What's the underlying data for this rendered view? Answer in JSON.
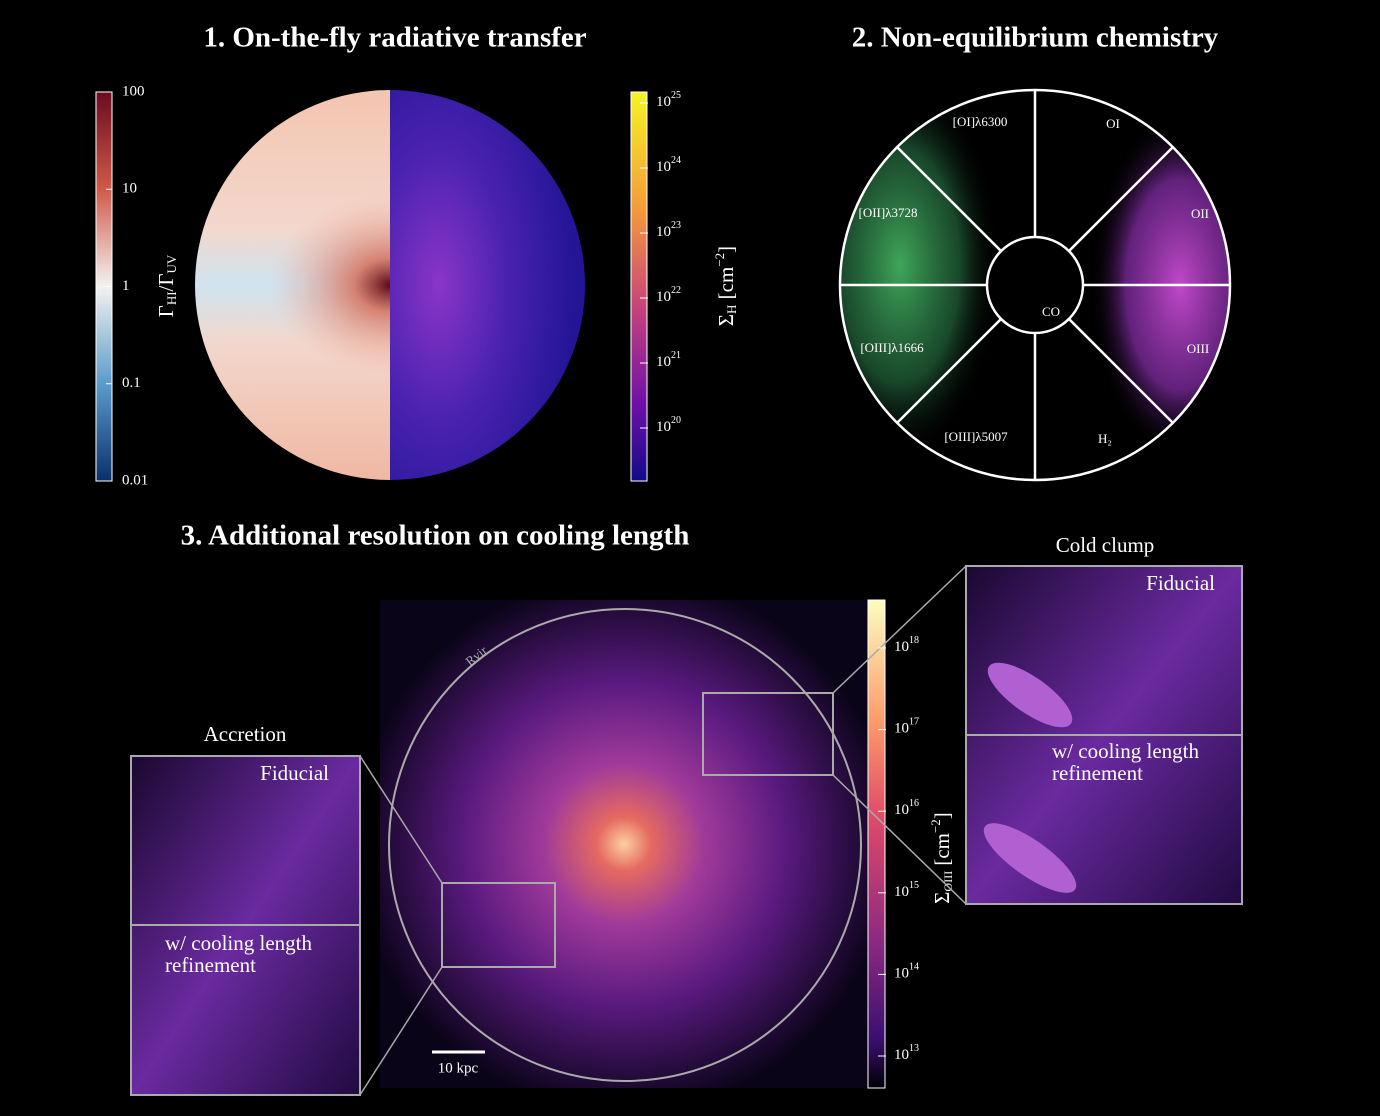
{
  "panel1": {
    "title": "1. On-the-fly radiative transfer",
    "colorbar_left": {
      "label": {
        "symbol": "Γ",
        "sub": "HI",
        "sep": "/Γ",
        "sub2": "UV"
      },
      "ticks": [
        "100",
        "10",
        "1",
        "0.1",
        "0.01"
      ]
    },
    "colorbar_right": {
      "label": {
        "symbol": "Σ",
        "sub": "H",
        "unit": " [cm",
        "sup": "−2",
        "close": "]"
      },
      "ticks": [
        {
          "base": "10",
          "exp": "25"
        },
        {
          "base": "10",
          "exp": "24"
        },
        {
          "base": "10",
          "exp": "23"
        },
        {
          "base": "10",
          "exp": "22"
        },
        {
          "base": "10",
          "exp": "21"
        },
        {
          "base": "10",
          "exp": "20"
        }
      ]
    }
  },
  "panel2": {
    "title": "2. Non-equilibrium chemistry",
    "sectors": [
      "[OI]λ6300",
      "OI",
      "OII",
      "OIII",
      "H₂",
      "[OIII]λ5007",
      "[OIII]λ1666",
      "[OII]λ3728"
    ],
    "center": "CO"
  },
  "panel3": {
    "title": "3. Additional resolution on cooling length",
    "circle_label": "Rvir",
    "scale_bar": "10 kpc",
    "colorbar": {
      "label": {
        "symbol": "Σ",
        "sub": "OIII",
        "unit": " [cm",
        "sup": "−2",
        "close": "]"
      },
      "ticks": [
        {
          "base": "10",
          "exp": "18"
        },
        {
          "base": "10",
          "exp": "17"
        },
        {
          "base": "10",
          "exp": "16"
        },
        {
          "base": "10",
          "exp": "15"
        },
        {
          "base": "10",
          "exp": "14"
        },
        {
          "base": "10",
          "exp": "13"
        }
      ]
    },
    "inset_left": {
      "title": "Accretion",
      "top": "Fiducial",
      "bottom": [
        "w/ cooling length",
        "refinement"
      ]
    },
    "inset_right": {
      "title": "Cold clump",
      "top": "Fiducial",
      "bottom": [
        "w/ cooling length",
        "refinement"
      ]
    }
  }
}
